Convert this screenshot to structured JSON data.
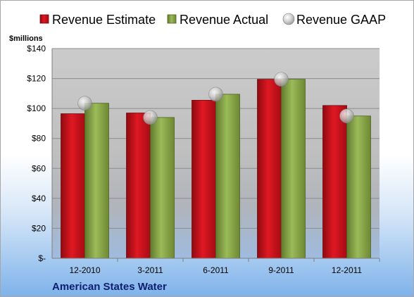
{
  "chart_data": {
    "type": "bar",
    "categories": [
      "12-2010",
      "3-2011",
      "6-2011",
      "9-2011",
      "12-2011"
    ],
    "series": [
      {
        "name": "Revenue Estimate",
        "values": [
          96.5,
          97,
          105.5,
          119.5,
          102
        ],
        "color": "#d0111b",
        "mark": "bar"
      },
      {
        "name": "Revenue Actual",
        "values": [
          103.5,
          94,
          109.5,
          119.5,
          95
        ],
        "color": "#8daa4c",
        "mark": "bar"
      },
      {
        "name": "Revenue GAAP",
        "values": [
          103.5,
          94,
          109.5,
          119.5,
          95
        ],
        "color": "#b8b8b8",
        "mark": "point"
      }
    ],
    "unit_label": "$millions",
    "y_ticks": [
      "$-",
      "$20",
      "$40",
      "$60",
      "$80",
      "$100",
      "$120",
      "$140"
    ],
    "ylim": [
      0,
      140
    ],
    "grid": true,
    "legend_position": "top",
    "footer": "American States Water"
  }
}
